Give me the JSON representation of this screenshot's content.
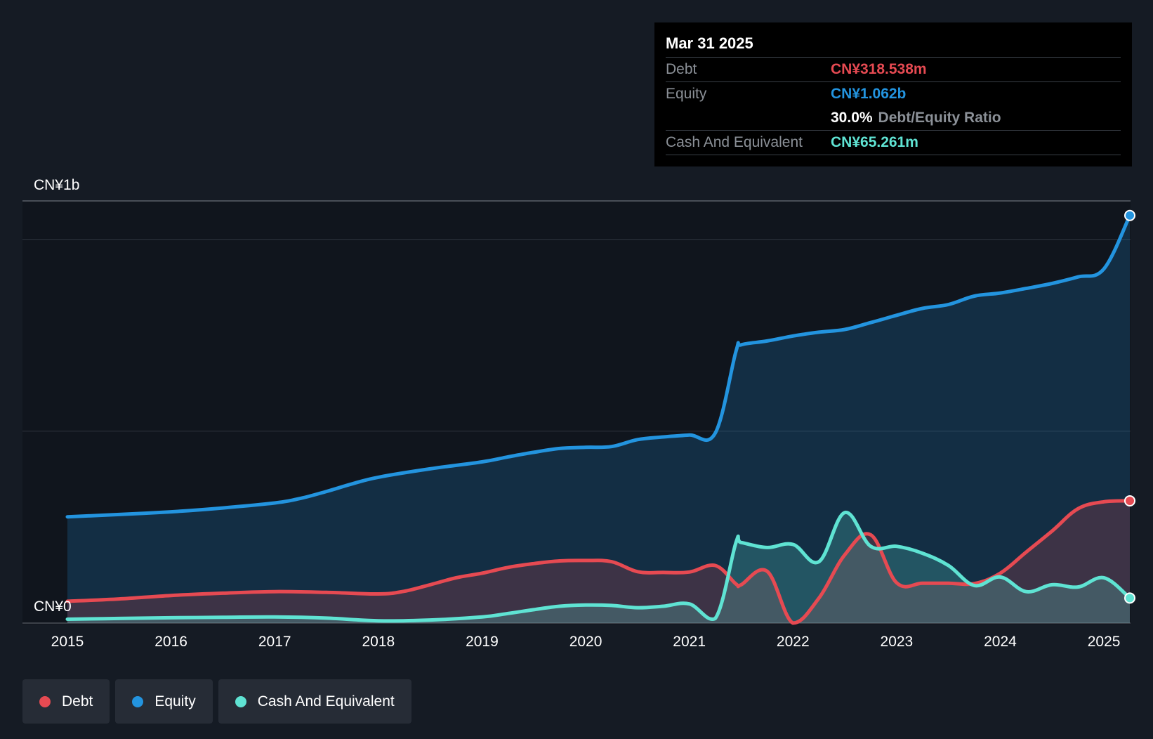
{
  "chart_data": {
    "type": "area",
    "title": "",
    "xlabel": "",
    "ylabel": "",
    "y_axis_top_label": "CN¥1b",
    "y_axis_bottom_label": "CN¥0",
    "ylim": [
      0,
      1100
    ],
    "xlim": [
      2015.0,
      2025.25
    ],
    "x_ticks": [
      "2015",
      "2016",
      "2017",
      "2018",
      "2019",
      "2020",
      "2021",
      "2022",
      "2023",
      "2024",
      "2025"
    ],
    "x_tick_values": [
      2015,
      2016,
      2017,
      2018,
      2019,
      2020,
      2021,
      2022,
      2023,
      2024,
      2025
    ],
    "grid_values": [
      0,
      500,
      1000,
      1100
    ],
    "series": [
      {
        "name": "Equity",
        "color": "#2394df",
        "x": [
          2015.0,
          2015.5,
          2016.0,
          2016.5,
          2017.0,
          2017.25,
          2017.5,
          2017.75,
          2018.0,
          2018.5,
          2019.0,
          2019.25,
          2019.5,
          2019.75,
          2020.0,
          2020.25,
          2020.5,
          2020.75,
          2021.0,
          2021.25,
          2021.45,
          2021.5,
          2021.75,
          2022.0,
          2022.25,
          2022.5,
          2022.75,
          2023.0,
          2023.25,
          2023.5,
          2023.75,
          2024.0,
          2024.25,
          2024.5,
          2024.75,
          2025.0,
          2025.25
        ],
        "values": [
          277,
          283,
          290,
          300,
          313,
          325,
          343,
          363,
          380,
          402,
          420,
          433,
          445,
          455,
          458,
          460,
          478,
          485,
          490,
          495,
          708,
          725,
          735,
          748,
          758,
          765,
          783,
          802,
          820,
          830,
          852,
          860,
          872,
          885,
          902,
          923,
          1062
        ]
      },
      {
        "name": "Debt",
        "color": "#e64a52",
        "x": [
          2015.0,
          2015.5,
          2016.0,
          2016.5,
          2017.0,
          2017.5,
          2018.0,
          2018.25,
          2018.5,
          2018.75,
          2019.0,
          2019.25,
          2019.5,
          2019.75,
          2020.0,
          2020.25,
          2020.5,
          2020.75,
          2021.0,
          2021.25,
          2021.45,
          2021.5,
          2021.75,
          2022.0,
          2022.25,
          2022.5,
          2022.75,
          2023.0,
          2023.25,
          2023.5,
          2023.75,
          2024.0,
          2024.25,
          2024.5,
          2024.75,
          2025.0,
          2025.25
        ],
        "values": [
          57,
          63,
          72,
          78,
          82,
          80,
          76,
          83,
          100,
          118,
          130,
          145,
          155,
          162,
          163,
          160,
          134,
          132,
          133,
          150,
          102,
          100,
          135,
          0,
          65,
          178,
          230,
          105,
          104,
          104,
          103,
          130,
          185,
          240,
          298,
          316,
          318.538
        ]
      },
      {
        "name": "Cash And Equivalent",
        "color": "#5fe3d3",
        "x": [
          2015.0,
          2015.5,
          2016.0,
          2016.5,
          2017.0,
          2017.5,
          2018.0,
          2018.5,
          2019.0,
          2019.25,
          2019.5,
          2019.75,
          2020.0,
          2020.25,
          2020.5,
          2020.75,
          2021.0,
          2021.25,
          2021.45,
          2021.5,
          2021.75,
          2022.0,
          2022.25,
          2022.5,
          2022.75,
          2023.0,
          2023.25,
          2023.5,
          2023.75,
          2024.0,
          2024.25,
          2024.5,
          2024.75,
          2025.0,
          2025.25
        ],
        "values": [
          10,
          12,
          14,
          15,
          16,
          13,
          6,
          8,
          16,
          25,
          35,
          44,
          47,
          46,
          40,
          44,
          50,
          12,
          210,
          210,
          197,
          205,
          160,
          288,
          200,
          200,
          182,
          150,
          98,
          120,
          82,
          100,
          94,
          118,
          65.261
        ]
      }
    ],
    "tooltip": {
      "date": "Mar 31 2025",
      "rows": {
        "debt_label": "Debt",
        "debt_value": "CN¥318.538m",
        "equity_label": "Equity",
        "equity_value": "CN¥1.062b",
        "ratio_value": "30.0%",
        "ratio_label": "Debt/Equity Ratio",
        "cash_label": "Cash And Equivalent",
        "cash_value": "CN¥65.261m"
      }
    },
    "legend": [
      {
        "label": "Debt",
        "color": "#e64a52"
      },
      {
        "label": "Equity",
        "color": "#2394df"
      },
      {
        "label": "Cash And Equivalent",
        "color": "#5fe3d3"
      }
    ]
  }
}
